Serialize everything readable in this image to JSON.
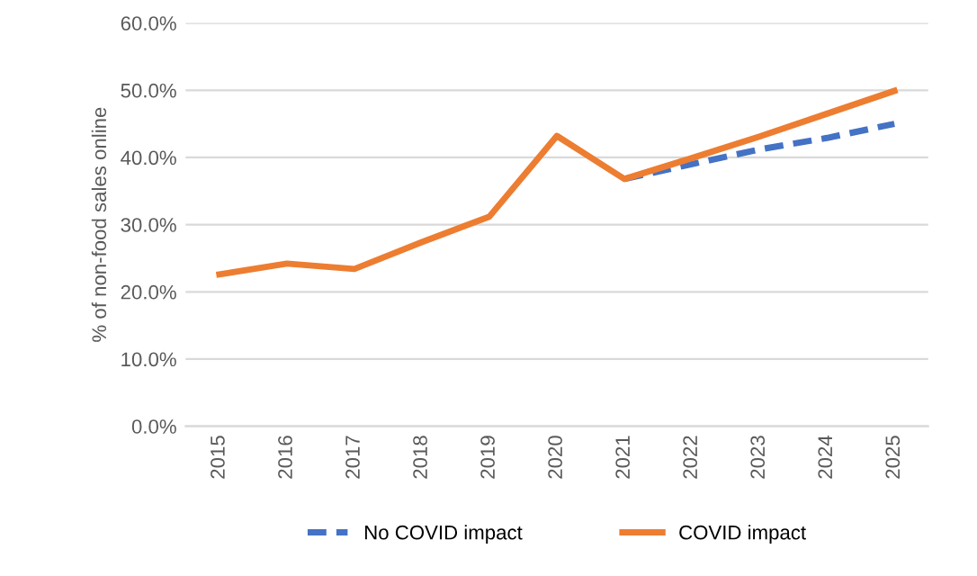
{
  "chart_data": {
    "type": "line",
    "ylabel": "% of non-food sales online",
    "categories": [
      "2015",
      "2016",
      "2017",
      "2018",
      "2019",
      "2020",
      "2021",
      "2022",
      "2023",
      "2024",
      "2025"
    ],
    "series": [
      {
        "name": "No COVID impact",
        "color": "#4472c4",
        "line_style": "dashed",
        "values": [
          null,
          null,
          null,
          null,
          null,
          null,
          36.8,
          39.0,
          41.2,
          42.9,
          45.0
        ]
      },
      {
        "name": "COVID impact",
        "color": "#ed7d31",
        "line_style": "solid",
        "values": [
          22.6,
          24.2,
          23.4,
          27.4,
          31.2,
          43.2,
          36.8,
          39.9,
          43.1,
          46.5,
          49.9
        ]
      }
    ],
    "ylim": [
      0,
      60
    ],
    "yticks": [
      {
        "value": 0,
        "label": "0.0%"
      },
      {
        "value": 10,
        "label": "10.0%"
      },
      {
        "value": 20,
        "label": "20.0%"
      },
      {
        "value": 30,
        "label": "30.0%"
      },
      {
        "value": 40,
        "label": "40.0%"
      },
      {
        "value": 50,
        "label": "50.0%"
      },
      {
        "value": 60,
        "label": "60.0%"
      }
    ],
    "grid": "y",
    "legend": "bottom",
    "marker": "none"
  }
}
